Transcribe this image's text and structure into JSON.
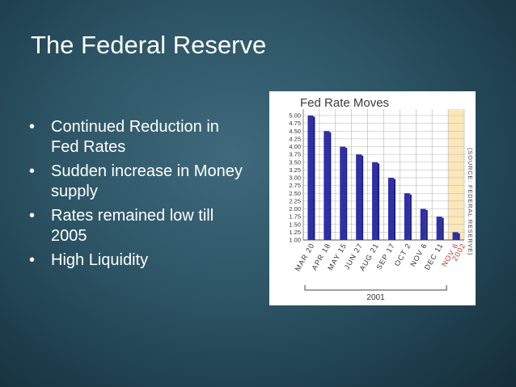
{
  "slide": {
    "title": "The Federal Reserve",
    "bullet_glyph": "•",
    "bullets": [
      "Continued Reduction in Fed Rates",
      "Sudden increase in Money supply",
      "Rates remained low till 2005",
      "High Liquidity"
    ]
  },
  "chart_data": {
    "type": "bar",
    "title": "Fed Rate Moves",
    "categories": [
      "MAR 20",
      "APR 18",
      "MAY 15",
      "JUN 27",
      "AUG 21",
      "SEP 17",
      "OCT 2",
      "NOV 6",
      "DEC 11",
      "NOV 6 2002"
    ],
    "values": [
      5.0,
      4.5,
      4.0,
      3.75,
      3.5,
      3.0,
      2.5,
      2.0,
      1.75,
      1.25
    ],
    "y_ticks": [
      "5.00",
      "4.75",
      "4.50",
      "4.25",
      "4.00",
      "3.75",
      "3.50",
      "3.25",
      "3.00",
      "2.75",
      "2.50",
      "2.25",
      "2.00",
      "1.75",
      "1.50",
      "1.25",
      "1.00"
    ],
    "ylim": [
      1.0,
      5.0
    ],
    "year_label": "2001",
    "source": "(SOURCE: FEDERAL RESERVE)",
    "grid": true,
    "highlight_index": 9,
    "colors": {
      "bar": "#2f2fa8",
      "bar_side": "#1a1a6e",
      "highlight_label": "#c0392b",
      "highlight_band": "#fbe7b8",
      "grid": "#b5b5b5",
      "text": "#333333"
    }
  }
}
